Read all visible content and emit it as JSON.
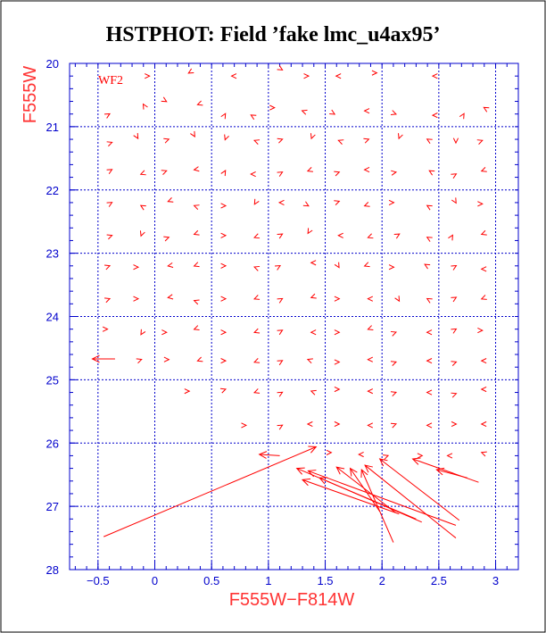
{
  "chart_data": {
    "type": "vector-field",
    "title": "HSTPHOT: Field ’fake lmc_u4ax95’",
    "xlabel": "F555W−F814W",
    "ylabel": "F555W",
    "panel_label": "WF2",
    "xlim": [
      -0.75,
      3.2
    ],
    "ylim": [
      28,
      20
    ],
    "y_inverted": true,
    "grid": true,
    "x_ticks": [
      -0.5,
      0,
      0.5,
      1,
      1.5,
      2,
      2.5,
      3
    ],
    "x_tick_labels": [
      "−0.5",
      "0",
      "0.5",
      "1",
      "1.5",
      "2",
      "2.5",
      "3"
    ],
    "y_ticks": [
      20,
      21,
      22,
      23,
      24,
      25,
      26,
      27,
      28
    ],
    "y_tick_labels": [
      "20",
      "21",
      "22",
      "23",
      "24",
      "25",
      "26",
      "27",
      "28"
    ],
    "arrow_color": "#ff0000",
    "axis_color": "#0000cc",
    "title_color": "#000000",
    "label_color": "#ff3333",
    "long_arrows": [
      {
        "from": [
          -0.45,
          27.48
        ],
        "to": [
          1.42,
          26.06
        ]
      },
      {
        "from": [
          1.98,
          27.08
        ],
        "to": [
          1.72,
          26.4
        ]
      },
      {
        "from": [
          2.1,
          27.57
        ],
        "to": [
          1.82,
          26.42
        ]
      },
      {
        "from": [
          2.12,
          27.1
        ],
        "to": [
          1.6,
          26.38
        ]
      },
      {
        "from": [
          2.15,
          27.12
        ],
        "to": [
          1.3,
          26.58
        ]
      },
      {
        "from": [
          2.3,
          27.2
        ],
        "to": [
          1.25,
          26.4
        ]
      },
      {
        "from": [
          2.35,
          27.25
        ],
        "to": [
          1.45,
          26.55
        ]
      },
      {
        "from": [
          2.65,
          27.5
        ],
        "to": [
          1.85,
          26.35
        ]
      },
      {
        "from": [
          2.68,
          27.22
        ],
        "to": [
          1.98,
          26.25
        ]
      },
      {
        "from": [
          2.65,
          27.3
        ],
        "to": [
          1.35,
          26.44
        ]
      },
      {
        "from": [
          2.85,
          26.62
        ],
        "to": [
          2.27,
          26.25
        ]
      },
      {
        "from": [
          2.75,
          26.55
        ],
        "to": [
          2.48,
          26.42
        ]
      },
      {
        "from": [
          1.1,
          26.2
        ],
        "to": [
          0.92,
          26.18
        ]
      },
      {
        "from": [
          -0.35,
          24.67
        ],
        "to": [
          -0.55,
          24.67
        ]
      }
    ],
    "short_arrows": {
      "length": 0.08,
      "points": [
        [
          -0.05,
          20.2,
          0
        ],
        [
          0.3,
          20.15,
          210
        ],
        [
          0.68,
          20.2,
          180
        ],
        [
          1.12,
          20.1,
          330
        ],
        [
          1.35,
          20.2,
          0
        ],
        [
          1.6,
          20.2,
          180
        ],
        [
          1.95,
          20.15,
          0
        ],
        [
          2.45,
          20.2,
          180
        ],
        [
          -0.4,
          20.8,
          30
        ],
        [
          -0.1,
          20.65,
          120
        ],
        [
          0.1,
          20.6,
          330
        ],
        [
          0.38,
          20.65,
          200
        ],
        [
          0.62,
          20.8,
          60
        ],
        [
          0.85,
          20.82,
          150
        ],
        [
          1.05,
          20.7,
          0
        ],
        [
          1.3,
          20.75,
          160
        ],
        [
          1.58,
          20.8,
          330
        ],
        [
          1.85,
          20.75,
          180
        ],
        [
          2.12,
          20.8,
          340
        ],
        [
          2.45,
          20.82,
          180
        ],
        [
          2.72,
          20.8,
          60
        ],
        [
          2.9,
          20.7,
          150
        ],
        [
          -0.38,
          21.25,
          20
        ],
        [
          -0.15,
          21.18,
          300
        ],
        [
          0.12,
          21.2,
          20
        ],
        [
          0.35,
          21.15,
          300
        ],
        [
          0.62,
          21.2,
          250
        ],
        [
          0.88,
          21.22,
          160
        ],
        [
          1.12,
          21.2,
          20
        ],
        [
          1.38,
          21.18,
          250
        ],
        [
          1.62,
          21.22,
          160
        ],
        [
          1.88,
          21.2,
          20
        ],
        [
          2.15,
          21.18,
          250
        ],
        [
          2.4,
          21.2,
          150
        ],
        [
          2.65,
          21.25,
          270
        ],
        [
          2.88,
          21.22,
          20
        ],
        [
          -0.38,
          21.68,
          30
        ],
        [
          -0.12,
          21.75,
          200
        ],
        [
          0.1,
          21.7,
          20
        ],
        [
          0.35,
          21.68,
          190
        ],
        [
          0.62,
          21.7,
          60
        ],
        [
          0.85,
          21.75,
          180
        ],
        [
          1.12,
          21.72,
          30
        ],
        [
          1.35,
          21.7,
          200
        ],
        [
          1.62,
          21.72,
          20
        ],
        [
          1.85,
          21.68,
          180
        ],
        [
          2.12,
          21.72,
          10
        ],
        [
          2.42,
          21.7,
          150
        ],
        [
          2.65,
          21.75,
          30
        ],
        [
          2.88,
          21.7,
          200
        ],
        [
          -0.38,
          22.2,
          30
        ],
        [
          -0.12,
          22.25,
          150
        ],
        [
          0.12,
          22.18,
          200
        ],
        [
          0.35,
          22.25,
          160
        ],
        [
          0.62,
          22.25,
          0
        ],
        [
          0.88,
          22.22,
          240
        ],
        [
          1.1,
          22.2,
          180
        ],
        [
          1.35,
          22.25,
          330
        ],
        [
          1.62,
          22.18,
          20
        ],
        [
          1.85,
          22.25,
          200
        ],
        [
          2.1,
          22.2,
          0
        ],
        [
          2.4,
          22.25,
          150
        ],
        [
          2.65,
          22.2,
          300
        ],
        [
          2.88,
          22.22,
          0
        ],
        [
          -0.38,
          22.72,
          20
        ],
        [
          -0.12,
          22.72,
          250
        ],
        [
          0.12,
          22.75,
          20
        ],
        [
          0.35,
          22.7,
          200
        ],
        [
          0.62,
          22.72,
          0
        ],
        [
          0.88,
          22.75,
          200
        ],
        [
          1.12,
          22.7,
          30
        ],
        [
          1.35,
          22.68,
          240
        ],
        [
          1.62,
          22.72,
          180
        ],
        [
          1.88,
          22.75,
          200
        ],
        [
          2.15,
          22.7,
          30
        ],
        [
          2.4,
          22.75,
          150
        ],
        [
          2.62,
          22.72,
          60
        ],
        [
          2.88,
          22.7,
          200
        ],
        [
          -0.4,
          23.2,
          20
        ],
        [
          -0.15,
          23.22,
          0
        ],
        [
          0.12,
          23.2,
          190
        ],
        [
          0.35,
          23.2,
          200
        ],
        [
          0.62,
          23.2,
          0
        ],
        [
          0.88,
          23.22,
          160
        ],
        [
          1.1,
          23.2,
          30
        ],
        [
          1.38,
          23.15,
          180
        ],
        [
          1.62,
          23.22,
          300
        ],
        [
          1.85,
          23.2,
          200
        ],
        [
          2.1,
          23.22,
          0
        ],
        [
          2.38,
          23.18,
          150
        ],
        [
          2.65,
          23.2,
          30
        ],
        [
          2.88,
          23.25,
          180
        ],
        [
          -0.4,
          23.72,
          20
        ],
        [
          -0.15,
          23.72,
          0
        ],
        [
          0.12,
          23.7,
          190
        ],
        [
          0.35,
          23.75,
          160
        ],
        [
          0.62,
          23.72,
          0
        ],
        [
          0.88,
          23.72,
          200
        ],
        [
          1.12,
          23.72,
          30
        ],
        [
          1.38,
          23.7,
          200
        ],
        [
          1.62,
          23.72,
          0
        ],
        [
          1.88,
          23.72,
          180
        ],
        [
          2.15,
          23.75,
          300
        ],
        [
          2.4,
          23.72,
          150
        ],
        [
          2.65,
          23.7,
          30
        ],
        [
          2.88,
          23.72,
          200
        ],
        [
          -0.42,
          24.2,
          0
        ],
        [
          -0.12,
          24.28,
          240
        ],
        [
          0.1,
          24.25,
          0
        ],
        [
          0.35,
          24.2,
          200
        ],
        [
          0.62,
          24.25,
          0
        ],
        [
          0.88,
          24.25,
          200
        ],
        [
          1.12,
          24.22,
          30
        ],
        [
          1.38,
          24.25,
          180
        ],
        [
          1.62,
          24.25,
          0
        ],
        [
          1.88,
          24.2,
          200
        ],
        [
          2.12,
          24.25,
          20
        ],
        [
          2.4,
          24.25,
          180
        ],
        [
          2.65,
          24.2,
          30
        ],
        [
          2.88,
          24.22,
          0
        ],
        [
          -0.12,
          24.68,
          20
        ],
        [
          0.12,
          24.68,
          0
        ],
        [
          0.38,
          24.7,
          200
        ],
        [
          0.62,
          24.7,
          0
        ],
        [
          0.88,
          24.72,
          200
        ],
        [
          1.12,
          24.7,
          30
        ],
        [
          1.35,
          24.68,
          160
        ],
        [
          1.62,
          24.72,
          0
        ],
        [
          1.88,
          24.68,
          180
        ],
        [
          2.12,
          24.72,
          20
        ],
        [
          2.4,
          24.7,
          180
        ],
        [
          2.65,
          24.72,
          20
        ],
        [
          2.88,
          24.7,
          180
        ],
        [
          0.3,
          25.18,
          0
        ],
        [
          0.62,
          25.15,
          20
        ],
        [
          0.88,
          25.2,
          200
        ],
        [
          1.12,
          25.2,
          30
        ],
        [
          1.38,
          25.18,
          160
        ],
        [
          1.62,
          25.15,
          0
        ],
        [
          1.88,
          25.18,
          180
        ],
        [
          2.12,
          25.2,
          20
        ],
        [
          2.4,
          25.2,
          180
        ],
        [
          2.65,
          25.22,
          20
        ],
        [
          2.88,
          25.15,
          180
        ],
        [
          0.8,
          25.72,
          0
        ],
        [
          1.12,
          25.72,
          30
        ],
        [
          1.35,
          25.7,
          180
        ],
        [
          1.62,
          25.7,
          0
        ],
        [
          1.88,
          25.72,
          180
        ],
        [
          2.12,
          25.7,
          20
        ],
        [
          2.4,
          25.72,
          180
        ],
        [
          2.65,
          25.7,
          0
        ],
        [
          2.88,
          25.7,
          180
        ],
        [
          1.55,
          26.15,
          0
        ],
        [
          1.8,
          26.18,
          180
        ],
        [
          2.05,
          26.2,
          20
        ],
        [
          2.35,
          26.2,
          0
        ],
        [
          2.58,
          26.2,
          180
        ],
        [
          2.88,
          26.15,
          160
        ]
      ]
    }
  }
}
